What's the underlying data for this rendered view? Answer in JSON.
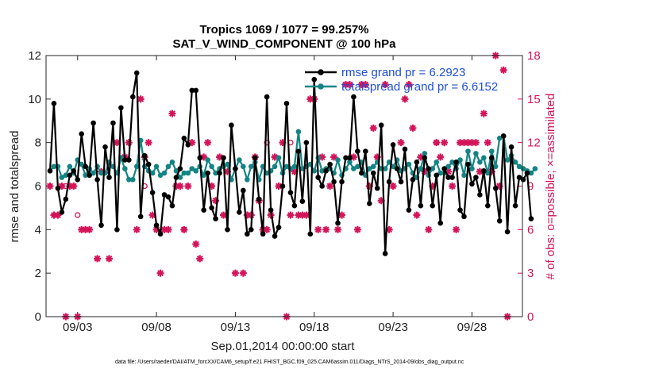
{
  "chart_data": {
    "type": "line",
    "title": "Tropics 1069 / 1077 = 99.257%",
    "subtitle": "SAT_V_WIND_COMPONENT @ 100 hPa",
    "xlabel": "Sep.01,2014 00:00:00 start",
    "ylabel": "rmse and totalspread",
    "ylabel_right": "# of obs: o=possible; ×=assimilated",
    "x_tick_labels": [
      "09/03",
      "09/08",
      "09/13",
      "09/18",
      "09/23",
      "09/28"
    ],
    "x_tick_positions": [
      3,
      8,
      13,
      18,
      23,
      28
    ],
    "xlim": [
      1.0,
      31.2
    ],
    "ylim": [
      0,
      12
    ],
    "y_ticks": [
      0,
      2,
      4,
      6,
      8,
      10,
      12
    ],
    "ylim_right": [
      0,
      18
    ],
    "y_ticks_right": [
      0,
      3,
      6,
      9,
      12,
      15,
      18
    ],
    "legend": [
      {
        "label": "rmse grand pr = 6.2923",
        "color": "#000000"
      },
      {
        "label": "totalspread grand pr = 6.6152",
        "color": "#138484"
      }
    ],
    "footer": "data file: /Users/raeder/DAI/ATM_forcXX/CAM6_setup/f.e21.FHIST_BGC.f09_025.CAM6assim.011/Diags_NTrS_2014-09/obs_diag_output.nc",
    "x_start": 1.25,
    "x_step": 0.25,
    "series": [
      {
        "name": "rmse",
        "color": "#000000",
        "values": [
          6.7,
          9.8,
          5.9,
          4.8,
          5.4,
          6.5,
          6.7,
          6.3,
          8.4,
          6.9,
          6.5,
          8.9,
          6.3,
          4.2,
          7.8,
          6.4,
          8.9,
          4.0,
          9.6,
          7.2,
          7.2,
          10.1,
          11.2,
          4.6,
          7.4,
          7.0,
          5.7,
          4.2,
          3.8,
          5.6,
          5.5,
          5.1,
          6.4,
          6.8,
          8.2,
          7.9,
          10.4,
          10.4,
          7.3,
          4.9,
          6.6,
          5.0,
          4.5,
          6.6,
          7.3,
          4.0,
          8.8,
          6.8,
          4.8,
          5.8,
          3.8,
          4.0,
          7.3,
          5.4,
          3.8,
          10.1,
          4.9,
          3.7,
          4.1,
          6.0,
          9.8,
          5.7,
          5.1,
          7.6,
          5.3,
          8.0,
          3.8,
          10.9,
          6.4,
          6.0,
          6.7,
          7.0,
          6.2,
          4.3,
          6.2,
          7.3,
          7.3,
          10.1,
          7.6,
          6.6,
          7.6,
          5.2,
          6.6,
          5.9,
          8.8,
          2.9,
          6.2,
          7.9,
          6.8,
          6.2,
          7.7,
          4.9,
          6.3,
          7.1,
          5.1,
          7.3,
          6.8,
          5.1,
          6.5,
          4.3,
          6.8,
          6.4,
          6.4,
          7.1,
          4.9,
          4.6,
          7.0,
          6.1,
          6.4,
          5.6,
          6.7,
          5.1,
          7.3,
          5.9,
          4.4,
          8.3,
          3.9,
          7.8,
          5.1,
          6.4,
          6.3,
          6.6,
          4.5
        ]
      },
      {
        "name": "totalspread",
        "color": "#138484",
        "values": [
          6.7,
          6.9,
          6.9,
          6.4,
          6.5,
          6.9,
          6.6,
          7.2,
          7.0,
          6.5,
          6.8,
          6.6,
          6.9,
          6.6,
          6.6,
          7.1,
          6.9,
          6.6,
          7.3,
          6.8,
          6.3,
          6.3,
          6.9,
          8.1,
          6.9,
          6.7,
          6.6,
          6.9,
          6.5,
          6.6,
          6.9,
          7.1,
          6.7,
          6.4,
          6.6,
          6.6,
          6.8,
          6.7,
          6.9,
          6.5,
          7.2,
          6.9,
          6.6,
          6.8,
          6.9,
          7.0,
          6.3,
          6.8,
          7.2,
          6.9,
          6.3,
          6.9,
          7.1,
          6.3,
          6.9,
          6.6,
          6.7,
          6.9,
          7.3,
          6.6,
          6.9,
          6.8,
          6.9,
          8.5,
          6.8,
          6.9,
          7.0,
          6.7,
          7.3,
          6.7,
          6.8,
          6.8,
          6.6,
          7.2,
          6.5,
          6.8,
          7.1,
          6.8,
          6.9,
          7.1,
          6.5,
          6.8,
          6.9,
          7.1,
          6.8,
          6.8,
          7.1,
          6.9,
          7.2,
          6.7,
          6.8,
          7.0,
          6.6,
          6.4,
          6.8,
          7.5,
          6.5,
          6.8,
          7.1,
          6.6,
          6.6,
          6.9,
          7.1,
          6.8,
          7.2,
          6.5,
          7.6,
          6.8,
          7.5,
          7.1,
          7.3,
          6.6,
          7.6,
          6.9,
          8.2,
          8.3,
          7.2,
          7.4,
          7.1,
          6.9,
          6.8,
          6.7,
          6.6,
          6.8
        ]
      },
      {
        "name": "obs_assimilated",
        "color": "#d4145a",
        "marker": "asterisk",
        "points": [
          [
            1.25,
            9
          ],
          [
            1.5,
            7
          ],
          [
            1.75,
            7
          ],
          [
            2.0,
            9
          ],
          [
            2.25,
            0
          ],
          [
            2.5,
            9
          ],
          [
            2.75,
            9
          ],
          [
            3.0,
            0
          ],
          [
            3.25,
            6
          ],
          [
            3.5,
            6
          ],
          [
            3.75,
            6
          ],
          [
            4.25,
            4
          ],
          [
            4.5,
            10
          ],
          [
            5.0,
            4
          ],
          [
            5.5,
            12
          ],
          [
            6.0,
            11
          ],
          [
            6.25,
            12
          ],
          [
            6.75,
            6
          ],
          [
            7.0,
            15
          ],
          [
            7.25,
            11
          ],
          [
            7.5,
            12
          ],
          [
            7.75,
            7
          ],
          [
            8.0,
            6
          ],
          [
            8.25,
            3
          ],
          [
            8.5,
            6
          ],
          [
            8.75,
            6
          ],
          [
            9.0,
            14
          ],
          [
            9.25,
            9
          ],
          [
            9.5,
            9
          ],
          [
            9.75,
            6
          ],
          [
            10.0,
            9
          ],
          [
            10.25,
            12
          ],
          [
            10.5,
            5
          ],
          [
            10.75,
            4
          ],
          [
            11.0,
            11
          ],
          [
            11.25,
            12
          ],
          [
            11.5,
            9
          ],
          [
            11.75,
            8
          ],
          [
            12.0,
            11
          ],
          [
            12.25,
            7
          ],
          [
            12.5,
            10
          ],
          [
            13.0,
            3
          ],
          [
            13.5,
            3
          ],
          [
            13.75,
            7
          ],
          [
            14.0,
            7
          ],
          [
            14.25,
            11
          ],
          [
            14.5,
            8
          ],
          [
            14.75,
            6
          ],
          [
            15.0,
            6
          ],
          [
            15.25,
            7
          ],
          [
            15.5,
            11
          ],
          [
            15.75,
            9
          ],
          [
            16.0,
            12
          ],
          [
            16.25,
            0
          ],
          [
            16.5,
            7
          ],
          [
            16.75,
            10
          ],
          [
            17.0,
            7
          ],
          [
            17.25,
            7
          ],
          [
            17.5,
            7
          ],
          [
            17.75,
            15
          ],
          [
            18.0,
            15
          ],
          [
            18.25,
            6
          ],
          [
            18.5,
            11
          ],
          [
            18.75,
            6
          ],
          [
            19.0,
            9
          ],
          [
            19.25,
            11
          ],
          [
            19.5,
            6
          ],
          [
            19.75,
            7
          ],
          [
            20.0,
            16
          ],
          [
            20.25,
            16
          ],
          [
            20.5,
            11
          ],
          [
            20.75,
            6
          ],
          [
            21.0,
            16
          ],
          [
            21.25,
            16
          ],
          [
            21.5,
            9
          ],
          [
            21.75,
            13
          ],
          [
            22.0,
            11
          ],
          [
            22.25,
            8
          ],
          [
            22.5,
            16
          ],
          [
            22.75,
            6
          ],
          [
            23.0,
            9
          ],
          [
            23.5,
            12
          ],
          [
            23.75,
            15
          ],
          [
            24.0,
            16
          ],
          [
            24.25,
            13
          ],
          [
            24.5,
            7
          ],
          [
            24.75,
            11
          ],
          [
            25.0,
            10
          ],
          [
            25.25,
            6
          ],
          [
            25.5,
            9
          ],
          [
            25.75,
            12
          ],
          [
            26.0,
            11
          ],
          [
            26.25,
            12
          ],
          [
            26.5,
            10
          ],
          [
            26.75,
            9
          ],
          [
            27.0,
            6
          ],
          [
            27.25,
            12
          ],
          [
            27.5,
            12
          ],
          [
            27.75,
            12
          ],
          [
            28.0,
            12
          ],
          [
            28.25,
            12
          ],
          [
            28.5,
            10
          ],
          [
            28.75,
            14
          ],
          [
            29.0,
            12
          ],
          [
            29.25,
            10
          ],
          [
            29.5,
            18
          ],
          [
            29.75,
            9
          ],
          [
            30.0,
            17
          ],
          [
            30.25,
            0
          ]
        ]
      },
      {
        "name": "obs_possible",
        "color": "#d4145a",
        "marker": "circle",
        "points": [
          [
            2.25,
            9
          ],
          [
            3.0,
            7
          ],
          [
            7.25,
            9
          ],
          [
            9.75,
            6
          ],
          [
            15.0,
            12
          ],
          [
            16.5,
            12
          ],
          [
            25.75,
            12
          ]
        ]
      }
    ]
  }
}
